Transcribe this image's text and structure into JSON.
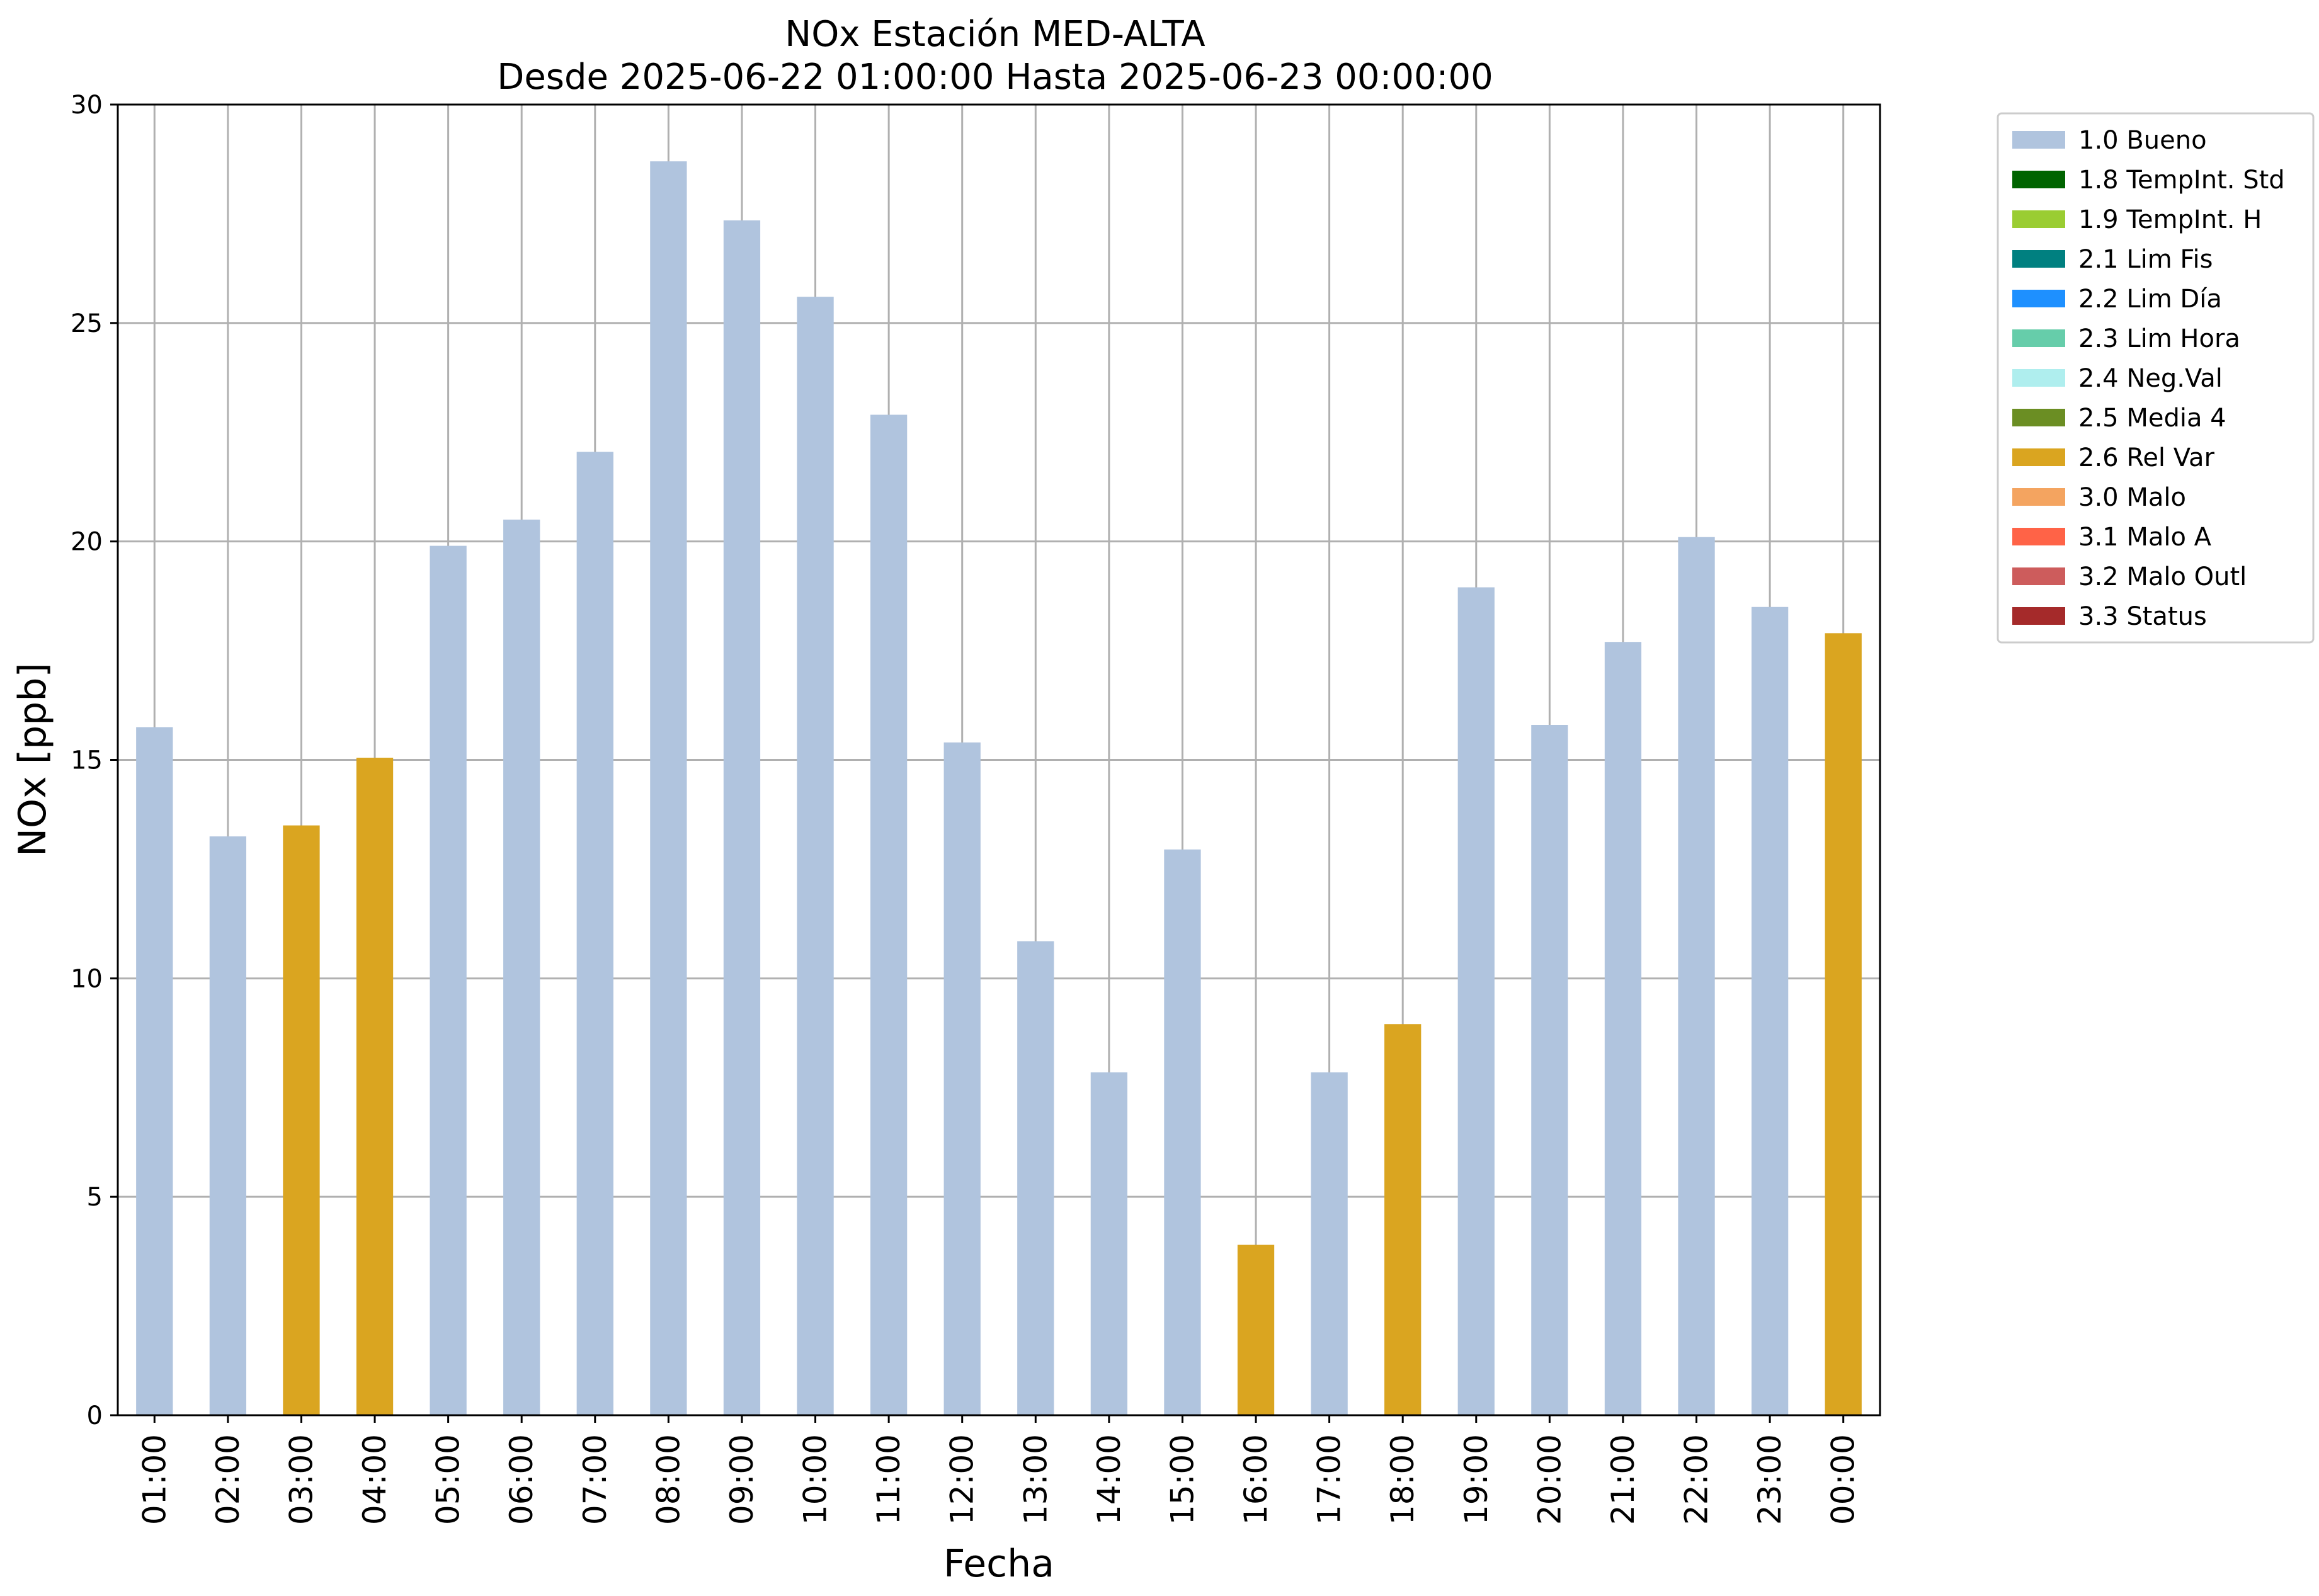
{
  "chart_data": {
    "type": "bar",
    "title": "NOx Estación MED-ALTA",
    "subtitle": "Desde 2025-06-22 01:00:00 Hasta 2025-06-23 00:00:00",
    "xlabel": "Fecha",
    "ylabel": "NOx [ppb]",
    "ylim": [
      0,
      30
    ],
    "yticks": [
      "0",
      "5",
      "10",
      "15",
      "20",
      "25",
      "30"
    ],
    "grid": true,
    "legend_position": "outside-top-right",
    "categories": [
      "01:00",
      "02:00",
      "03:00",
      "04:00",
      "05:00",
      "06:00",
      "07:00",
      "08:00",
      "09:00",
      "10:00",
      "11:00",
      "12:00",
      "13:00",
      "14:00",
      "15:00",
      "16:00",
      "17:00",
      "18:00",
      "19:00",
      "20:00",
      "21:00",
      "22:00",
      "23:00",
      "00:00"
    ],
    "values": [
      15.75,
      13.25,
      13.5,
      15.05,
      19.9,
      20.5,
      22.05,
      28.7,
      27.35,
      25.6,
      22.9,
      15.4,
      10.85,
      7.85,
      12.95,
      3.9,
      7.85,
      8.95,
      18.95,
      15.8,
      17.7,
      20.1,
      18.5,
      17.9
    ],
    "flags": [
      "1.0 Bueno",
      "1.0 Bueno",
      "2.6 Rel Var",
      "2.6 Rel Var",
      "1.0 Bueno",
      "1.0 Bueno",
      "1.0 Bueno",
      "1.0 Bueno",
      "1.0 Bueno",
      "1.0 Bueno",
      "1.0 Bueno",
      "1.0 Bueno",
      "1.0 Bueno",
      "1.0 Bueno",
      "1.0 Bueno",
      "2.6 Rel Var",
      "1.0 Bueno",
      "2.6 Rel Var",
      "1.0 Bueno",
      "1.0 Bueno",
      "1.0 Bueno",
      "1.0 Bueno",
      "1.0 Bueno",
      "2.6 Rel Var"
    ],
    "legend": [
      {
        "label": "1.0 Bueno",
        "color": "#b0c4de"
      },
      {
        "label": "1.8 TempInt. Std",
        "color": "#006400"
      },
      {
        "label": "1.9 TempInt. H",
        "color": "#9acd32"
      },
      {
        "label": "2.1 Lim Fis",
        "color": "#008080"
      },
      {
        "label": "2.2 Lim Día",
        "color": "#1e90ff"
      },
      {
        "label": "2.3 Lim Hora",
        "color": "#66cdaa"
      },
      {
        "label": "2.4 Neg.Val",
        "color": "#afeeee"
      },
      {
        "label": "2.5 Media 4",
        "color": "#6b8e23"
      },
      {
        "label": "2.6 Rel Var",
        "color": "#daa520"
      },
      {
        "label": "3.0 Malo",
        "color": "#f4a460"
      },
      {
        "label": "3.1 Malo A",
        "color": "#ff6347"
      },
      {
        "label": "3.2 Malo Outl",
        "color": "#cd5c5c"
      },
      {
        "label": "3.3 Status",
        "color": "#a52a2a"
      }
    ]
  }
}
